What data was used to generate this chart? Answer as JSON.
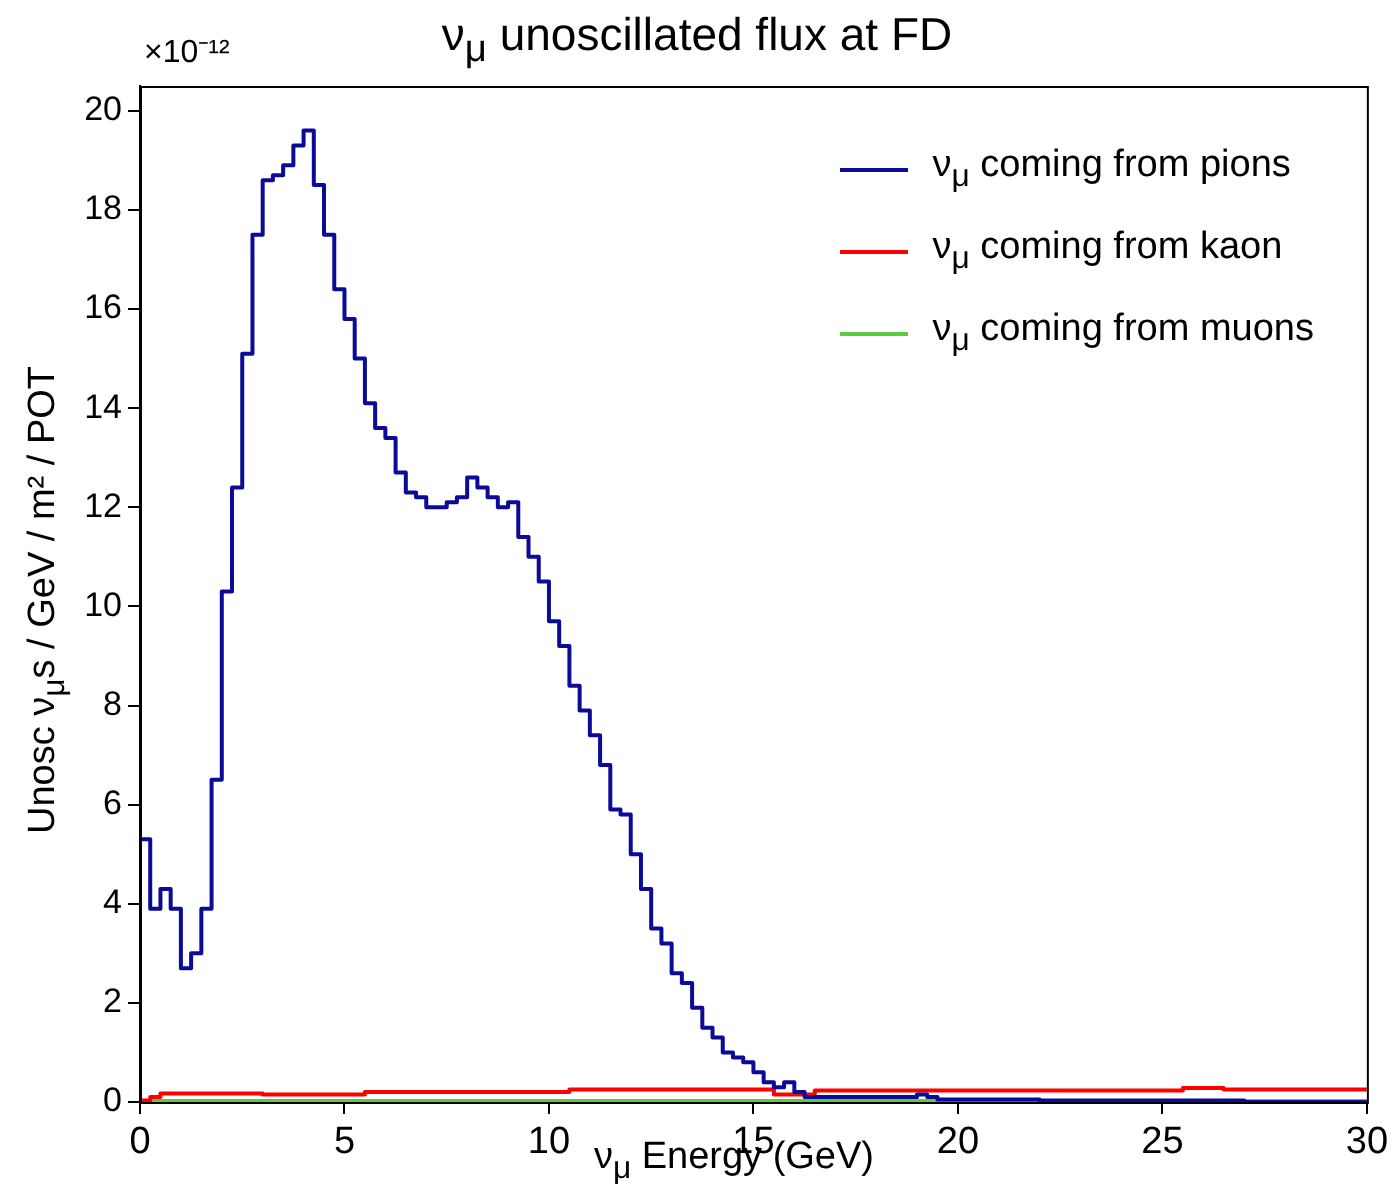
{
  "chart_data": {
    "type": "histogram",
    "title": "ν$_{μ}$ unoscillated flux at FD",
    "xlabel": "ν$_{μ}$ Energy (GeV)",
    "ylabel": "Unosc ν$_{μ}$s / GeV / m² / POT",
    "annotations": [
      "×10⁻¹²"
    ],
    "bins": [
      0,
      0.25,
      0.5,
      0.75,
      1,
      1.25,
      1.5,
      1.75,
      2,
      2.25,
      2.5,
      2.75,
      3,
      3.25,
      3.5,
      3.75,
      4,
      4.25,
      4.5,
      4.75,
      5,
      5.25,
      5.5,
      5.75,
      6,
      6.25,
      6.5,
      6.75,
      7,
      7.25,
      7.5,
      7.75,
      8,
      8.25,
      8.5,
      8.75,
      9,
      9.25,
      9.5,
      9.75,
      10,
      10.25,
      10.5,
      10.75,
      11,
      11.25,
      11.5,
      11.75,
      12,
      12.25,
      12.5,
      12.75,
      13,
      13.25,
      13.5,
      13.75,
      14,
      14.25,
      14.5,
      14.75,
      15,
      15.25,
      15.5,
      15.75,
      16,
      16.25,
      16.5,
      16.75,
      17,
      17.25,
      17.5,
      17.75,
      18,
      18.25,
      18.5,
      18.75,
      19,
      19.25,
      19.5,
      19.75,
      20,
      20.25,
      20.5,
      20.75,
      21,
      21.25,
      21.5,
      21.75,
      22,
      22.25,
      22.5,
      22.75,
      23,
      23.25,
      23.5,
      23.75,
      24,
      24.25,
      24.5,
      24.75,
      25,
      25.25,
      25.5,
      25.75,
      26,
      26.25,
      26.5,
      26.75,
      27,
      27.25,
      27.5,
      27.75,
      28,
      28.25,
      28.5,
      28.75,
      29,
      29.25,
      29.5,
      29.75,
      30
    ],
    "series": [
      {
        "name": "ν$_{μ}$ coming from pions",
        "color": "#0b0b99",
        "values": [
          5.3,
          3.9,
          4.3,
          3.9,
          2.7,
          3.0,
          3.9,
          6.5,
          10.3,
          12.4,
          15.1,
          17.5,
          18.6,
          18.7,
          18.9,
          19.3,
          19.6,
          18.5,
          17.5,
          16.4,
          15.8,
          15.0,
          14.1,
          13.6,
          13.4,
          12.7,
          12.3,
          12.2,
          12.0,
          12.0,
          12.1,
          12.2,
          12.6,
          12.4,
          12.2,
          12.0,
          12.1,
          11.4,
          11.0,
          10.5,
          9.7,
          9.2,
          8.4,
          7.9,
          7.4,
          6.8,
          5.9,
          5.8,
          5.0,
          4.3,
          3.5,
          3.2,
          2.6,
          2.4,
          1.9,
          1.5,
          1.3,
          1.0,
          0.9,
          0.8,
          0.6,
          0.4,
          0.3,
          0.4,
          0.2,
          0.1,
          0.1,
          0.1,
          0.1,
          0.1,
          0.1,
          0.1,
          0.1,
          0.1,
          0.1,
          0.1,
          0.15,
          0.1,
          0.05,
          0.05,
          0.05,
          0.05,
          0.05,
          0.05,
          0.05,
          0.05,
          0.05,
          0.05,
          0.03,
          0.03,
          0.03,
          0.03,
          0.03,
          0.03,
          0.03,
          0.03,
          0.03,
          0.03,
          0.03,
          0.03,
          0.03,
          0.03,
          0.03,
          0.03,
          0.03,
          0.03,
          0.03,
          0.03,
          0,
          0,
          0,
          0,
          0,
          0,
          0,
          0,
          0,
          0,
          0,
          0
        ]
      },
      {
        "name": "ν$_{μ}$ coming from kaon",
        "color": "#ff0000",
        "values": [
          0.03,
          0.1,
          0.17,
          0.17,
          0.17,
          0.17,
          0.17,
          0.17,
          0.17,
          0.17,
          0.17,
          0.17,
          0.15,
          0.15,
          0.15,
          0.15,
          0.15,
          0.15,
          0.15,
          0.15,
          0.15,
          0.15,
          0.2,
          0.2,
          0.2,
          0.2,
          0.2,
          0.2,
          0.2,
          0.2,
          0.2,
          0.2,
          0.2,
          0.2,
          0.2,
          0.2,
          0.2,
          0.2,
          0.2,
          0.2,
          0.2,
          0.2,
          0.25,
          0.25,
          0.25,
          0.25,
          0.25,
          0.25,
          0.25,
          0.25,
          0.25,
          0.25,
          0.25,
          0.25,
          0.25,
          0.25,
          0.25,
          0.25,
          0.25,
          0.25,
          0.25,
          0.25,
          0.15,
          0.15,
          0.15,
          0.15,
          0.23,
          0.23,
          0.23,
          0.23,
          0.23,
          0.23,
          0.23,
          0.23,
          0.23,
          0.23,
          0.23,
          0.23,
          0.23,
          0.23,
          0.23,
          0.23,
          0.23,
          0.23,
          0.23,
          0.23,
          0.23,
          0.23,
          0.23,
          0.23,
          0.23,
          0.23,
          0.23,
          0.23,
          0.23,
          0.23,
          0.23,
          0.23,
          0.23,
          0.23,
          0.23,
          0.23,
          0.28,
          0.28,
          0.28,
          0.28,
          0.25,
          0.25,
          0.25,
          0.25,
          0.25,
          0.25,
          0.25,
          0.25,
          0.25,
          0.25,
          0.25,
          0.25,
          0.25,
          0.25
        ]
      },
      {
        "name": "ν$_{μ}$ coming from muons",
        "color": "#5ccc3a",
        "values": [
          0.02,
          0.02,
          0.02,
          0.02,
          0.02,
          0.02,
          0.02,
          0.02,
          0.02,
          0.02,
          0.02,
          0.02,
          0.02,
          0.02,
          0.02,
          0.02,
          0.02,
          0.02,
          0.02,
          0.02,
          0.02,
          0.02,
          0.02,
          0.02,
          0.02,
          0.02,
          0.02,
          0.02,
          0.02,
          0.02,
          0.02,
          0.02,
          0.02,
          0.02,
          0.02,
          0.02,
          0.02,
          0.02,
          0.02,
          0.02,
          0.02,
          0.02,
          0.02,
          0.02,
          0.02,
          0.02,
          0.02,
          0.02,
          0.02,
          0.02,
          0.02,
          0.02,
          0.02,
          0.02,
          0.02,
          0.02,
          0.02,
          0.02,
          0.02,
          0.02,
          0.02,
          0.02,
          0.02,
          0.02,
          0.02,
          0.02,
          0.02,
          0.02,
          0.02,
          0.02,
          0.02,
          0.02,
          0.02,
          0.02,
          0.02,
          0.02,
          0.02,
          0.02,
          0.02,
          0.02,
          0.02,
          0.02,
          0.02,
          0.02,
          0.02,
          0.02,
          0.02,
          0.02,
          0.02,
          0.02,
          0.02,
          0.02,
          0.02,
          0.02,
          0.02,
          0.02,
          0.02,
          0.02,
          0.02,
          0.02,
          0.02,
          0.02,
          0.02,
          0.02,
          0.02,
          0.02,
          0.02,
          0.02,
          0.02,
          0.02,
          0.02,
          0.02,
          0.02,
          0.02,
          0.02,
          0.02,
          0.02,
          0.02,
          0.02,
          0.02
        ]
      }
    ],
    "xlim": [
      0,
      30
    ],
    "ylim": [
      0,
      20.5
    ],
    "xticks": [
      0,
      5,
      10,
      15,
      20,
      25,
      30
    ],
    "yticks": [
      0,
      2,
      4,
      6,
      8,
      10,
      12,
      14,
      16,
      18,
      20
    ],
    "grid": false,
    "legend": "top right"
  }
}
